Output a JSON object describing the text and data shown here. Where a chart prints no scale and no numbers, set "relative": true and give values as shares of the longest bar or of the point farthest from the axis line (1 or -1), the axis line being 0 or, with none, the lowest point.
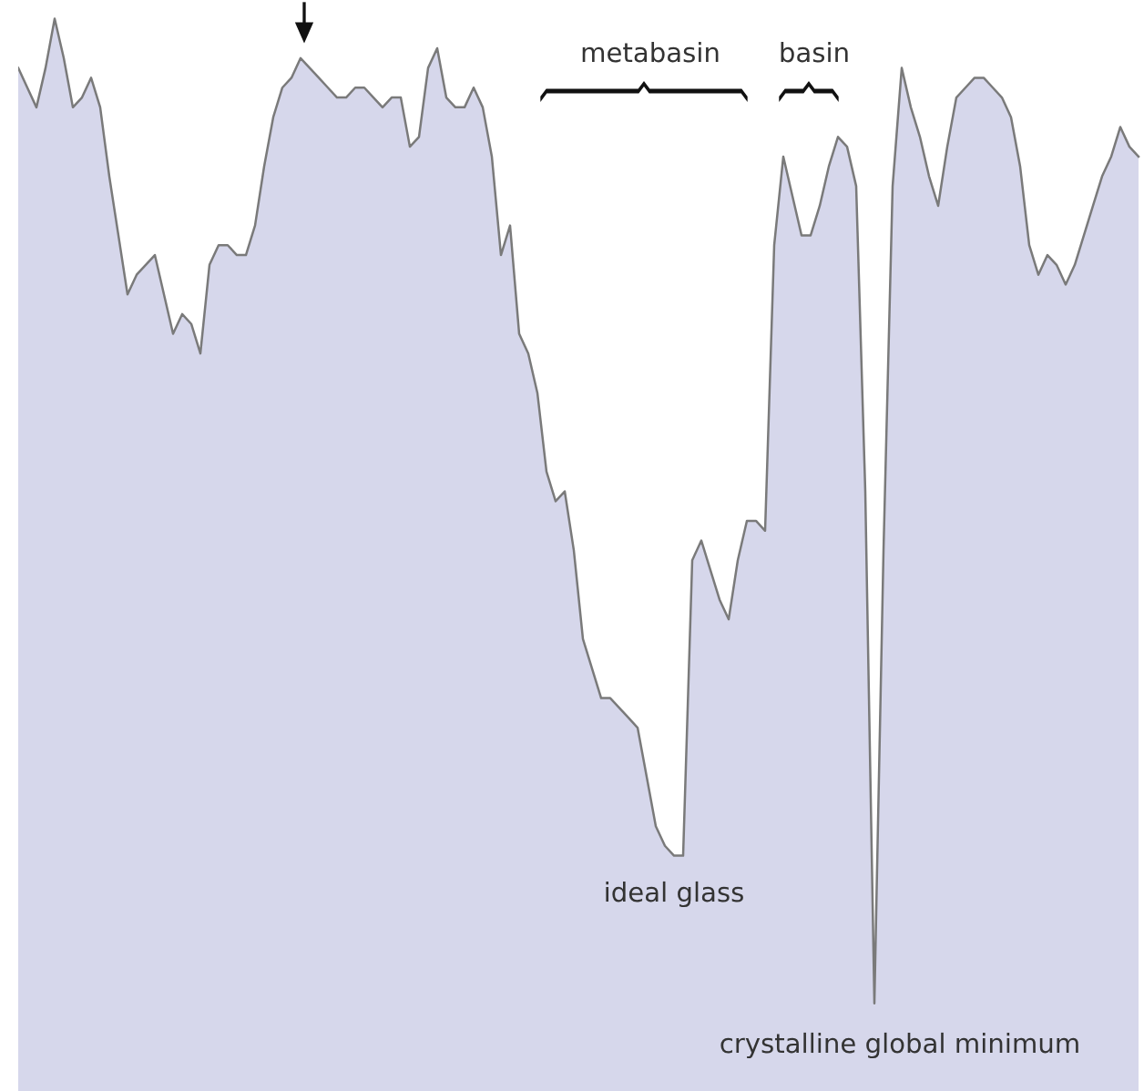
{
  "chart_data": {
    "type": "area",
    "relative": true,
    "categories": [
      null,
      null,
      null,
      null,
      null,
      null,
      null,
      null,
      null,
      null,
      null,
      null,
      null,
      null,
      null,
      null,
      null,
      null,
      null,
      null,
      null,
      null,
      null,
      null,
      null,
      null,
      null,
      null,
      null,
      null,
      null,
      null,
      null,
      null,
      null,
      null,
      null,
      null,
      null,
      null,
      null,
      null,
      null,
      null,
      null,
      null,
      null,
      null,
      null,
      null,
      null,
      null,
      null,
      null,
      null,
      null,
      null,
      null,
      null,
      null,
      null,
      null,
      null,
      null,
      null,
      null,
      null,
      null,
      null,
      null,
      null,
      null,
      null,
      null,
      null,
      null,
      null,
      null,
      null,
      null,
      null,
      null,
      null,
      null,
      null,
      null,
      null,
      null,
      null,
      null,
      null,
      null,
      null,
      null,
      null,
      null,
      null,
      null,
      null,
      null,
      null,
      null,
      null,
      null,
      null,
      null,
      null,
      null,
      null,
      null,
      null,
      null,
      null,
      null,
      null,
      null,
      null,
      null,
      null,
      null,
      null,
      null,
      null,
      null
    ],
    "series": [
      {
        "color": "#d6d7eb",
        "values": [
          0.95,
          0.93,
          0.91,
          0.95,
          1.0,
          0.96,
          0.91,
          0.92,
          0.94,
          0.91,
          0.84,
          0.78,
          0.72,
          0.74,
          0.75,
          0.76,
          0.72,
          0.68,
          0.7,
          0.69,
          0.66,
          0.75,
          0.77,
          0.77,
          0.76,
          0.76,
          0.79,
          0.85,
          0.9,
          0.93,
          0.94,
          0.96,
          0.95,
          0.94,
          0.93,
          0.92,
          0.92,
          0.93,
          0.93,
          0.92,
          0.91,
          0.92,
          0.92,
          0.87,
          0.88,
          0.95,
          0.97,
          0.92,
          0.91,
          0.91,
          0.93,
          0.91,
          0.86,
          0.76,
          0.79,
          0.68,
          0.66,
          0.62,
          0.54,
          0.51,
          0.52,
          0.46,
          0.37,
          0.34,
          0.31,
          0.31,
          0.3,
          0.29,
          0.28,
          0.23,
          0.18,
          0.16,
          0.15,
          0.15,
          0.45,
          0.47,
          0.44,
          0.41,
          0.39,
          0.45,
          0.49,
          0.49,
          0.48,
          0.77,
          0.86,
          0.82,
          0.78,
          0.78,
          0.81,
          0.85,
          0.88,
          0.87,
          0.83,
          0.52,
          0.0,
          0.46,
          0.83,
          0.95,
          0.91,
          0.88,
          0.84,
          0.81,
          0.87,
          0.92,
          0.93,
          0.94,
          0.94,
          0.93,
          0.92,
          0.9,
          0.85,
          0.77,
          0.74,
          0.76,
          0.75,
          0.73,
          0.75,
          0.78,
          0.81,
          0.84,
          0.86,
          0.89,
          0.87,
          0.86
        ]
      }
    ],
    "annotations": [
      "metabasin",
      "basin",
      "ideal glass",
      "crystalline global minimum"
    ]
  }
}
